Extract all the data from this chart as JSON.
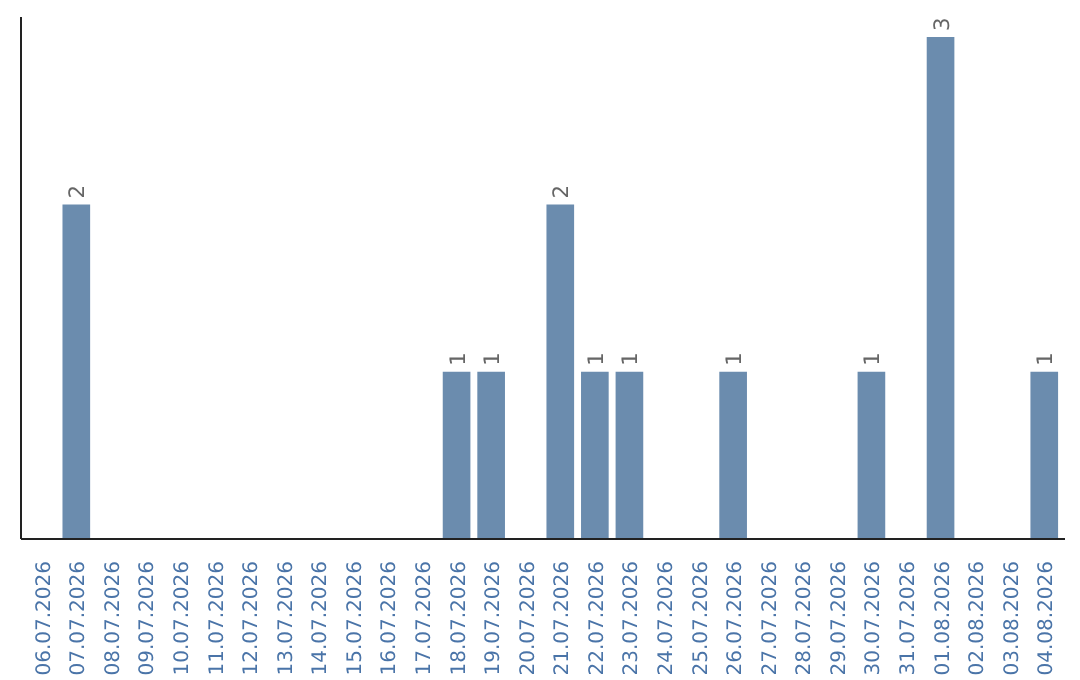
{
  "chart_data": {
    "type": "bar",
    "categories": [
      "06.07.2026",
      "07.07.2026",
      "08.07.2026",
      "09.07.2026",
      "10.07.2026",
      "11.07.2026",
      "12.07.2026",
      "13.07.2026",
      "14.07.2026",
      "15.07.2026",
      "16.07.2026",
      "17.07.2026",
      "18.07.2026",
      "19.07.2026",
      "20.07.2026",
      "21.07.2026",
      "22.07.2026",
      "23.07.2026",
      "24.07.2026",
      "25.07.2026",
      "26.07.2026",
      "27.07.2026",
      "28.07.2026",
      "29.07.2026",
      "30.07.2026",
      "31.07.2026",
      "01.08.2026",
      "02.08.2026",
      "03.08.2026",
      "04.08.2026"
    ],
    "values": [
      0,
      2,
      0,
      0,
      0,
      0,
      0,
      0,
      0,
      0,
      0,
      0,
      1,
      1,
      0,
      2,
      1,
      1,
      0,
      0,
      1,
      0,
      0,
      0,
      1,
      0,
      3,
      0,
      0,
      1
    ],
    "value_labels": [
      null,
      "2",
      null,
      null,
      null,
      null,
      null,
      null,
      null,
      null,
      null,
      null,
      "1",
      "1",
      null,
      "2",
      "1",
      "1",
      null,
      null,
      "1",
      null,
      null,
      null,
      "1",
      null,
      "3",
      null,
      null,
      "1"
    ],
    "color": "#6b8cae",
    "ylim": [
      0,
      3.12
    ],
    "tick_labels": "x",
    "grid": false
  }
}
